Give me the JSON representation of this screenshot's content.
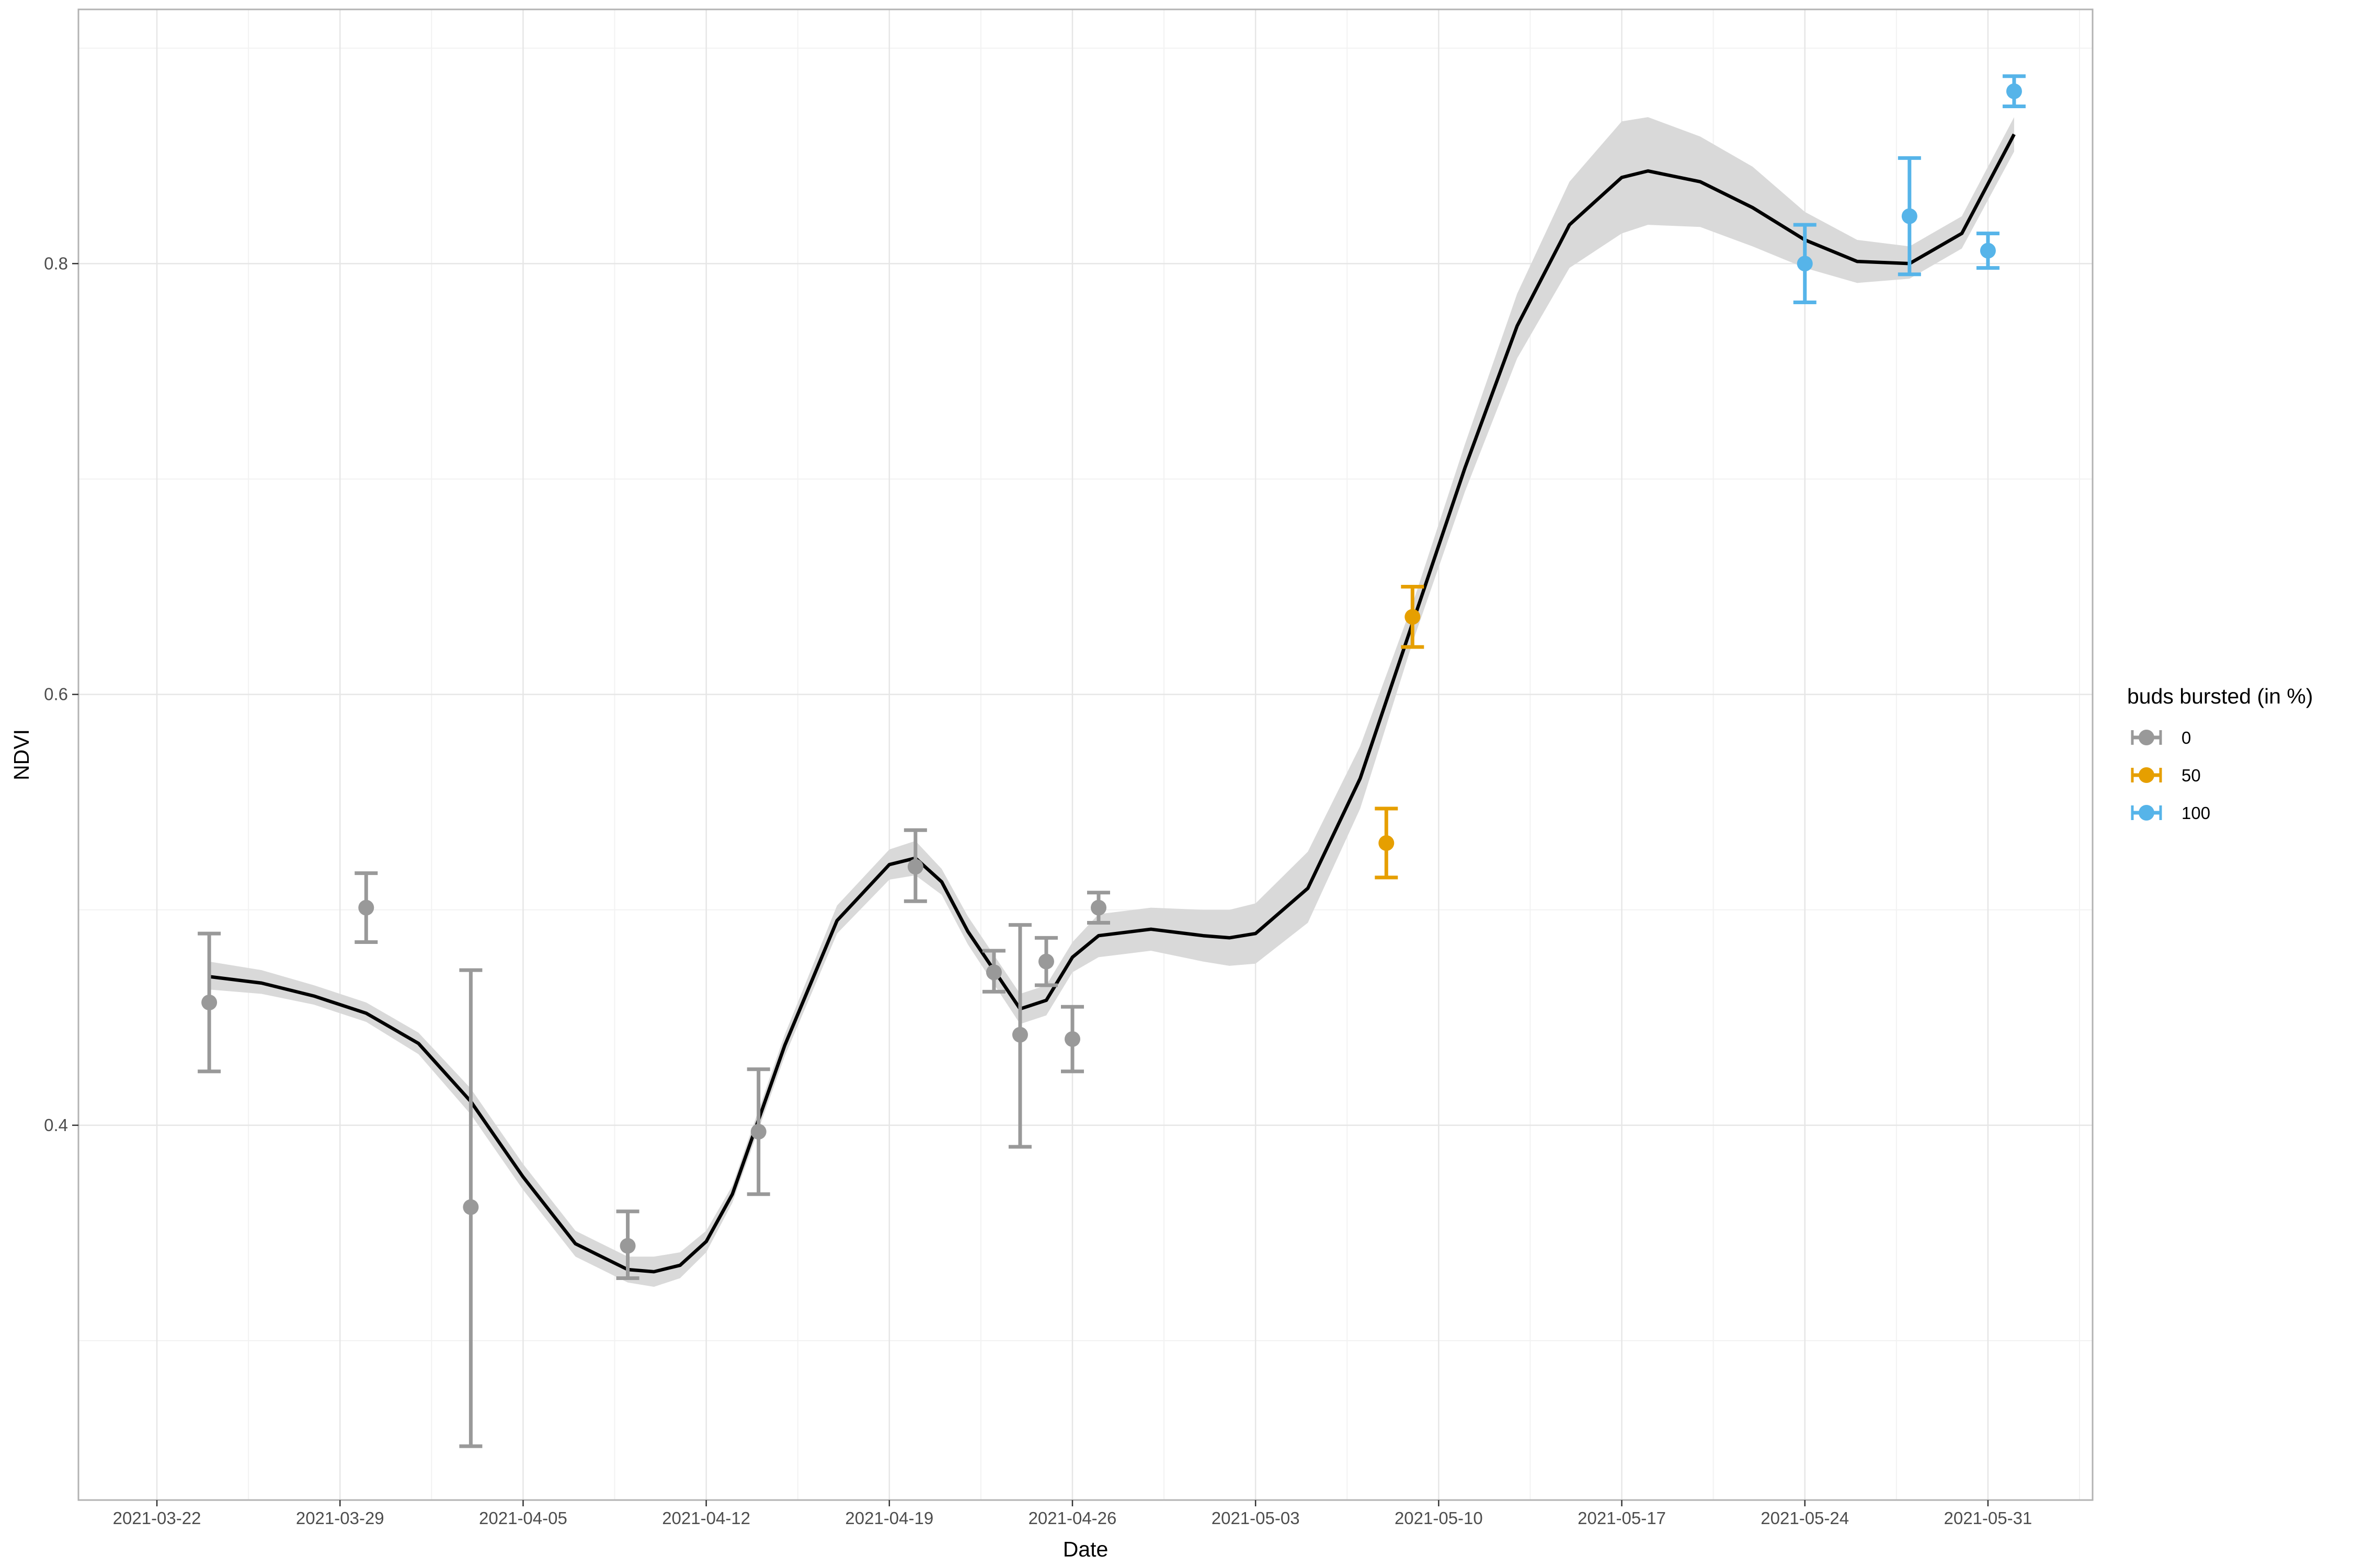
{
  "chart_data": {
    "type": "scatter",
    "xlabel": "Date",
    "ylabel": "NDVI",
    "x_axis_type": "date",
    "xlim": [
      "2021-03-19",
      "2021-06-04"
    ],
    "ylim": [
      0.226,
      0.918
    ],
    "x_ticks": [
      "2021-03-22",
      "2021-03-29",
      "2021-04-05",
      "2021-04-12",
      "2021-04-19",
      "2021-04-26",
      "2021-05-03",
      "2021-05-10",
      "2021-05-17",
      "2021-05-24",
      "2021-05-31"
    ],
    "y_ticks": [
      0.4,
      0.6,
      0.8
    ],
    "grid": true,
    "legend": {
      "title": "buds bursted (in %)",
      "position": "right",
      "entries": [
        {
          "label": "0",
          "color": "#999999"
        },
        {
          "label": "50",
          "color": "#E69F00"
        },
        {
          "label": "100",
          "color": "#56B4E9"
        }
      ]
    },
    "points": [
      {
        "date": "2021-03-24",
        "y": 0.457,
        "ymin": 0.425,
        "ymax": 0.489,
        "group": "0"
      },
      {
        "date": "2021-03-30",
        "y": 0.501,
        "ymin": 0.485,
        "ymax": 0.517,
        "group": "0"
      },
      {
        "date": "2021-04-03",
        "y": 0.362,
        "ymin": 0.251,
        "ymax": 0.472,
        "group": "0"
      },
      {
        "date": "2021-04-09",
        "y": 0.344,
        "ymin": 0.329,
        "ymax": 0.36,
        "group": "0"
      },
      {
        "date": "2021-04-14",
        "y": 0.397,
        "ymin": 0.368,
        "ymax": 0.426,
        "group": "0"
      },
      {
        "date": "2021-04-20",
        "y": 0.52,
        "ymin": 0.504,
        "ymax": 0.537,
        "group": "0"
      },
      {
        "date": "2021-04-23",
        "y": 0.471,
        "ymin": 0.462,
        "ymax": 0.481,
        "group": "0"
      },
      {
        "date": "2021-04-24",
        "y": 0.442,
        "ymin": 0.39,
        "ymax": 0.493,
        "group": "0"
      },
      {
        "date": "2021-04-25",
        "y": 0.476,
        "ymin": 0.465,
        "ymax": 0.487,
        "group": "0"
      },
      {
        "date": "2021-04-26",
        "y": 0.44,
        "ymin": 0.425,
        "ymax": 0.455,
        "group": "0"
      },
      {
        "date": "2021-04-27",
        "y": 0.501,
        "ymin": 0.494,
        "ymax": 0.508,
        "group": "0"
      },
      {
        "date": "2021-05-08",
        "y": 0.531,
        "ymin": 0.515,
        "ymax": 0.547,
        "group": "50"
      },
      {
        "date": "2021-05-09",
        "y": 0.636,
        "ymin": 0.622,
        "ymax": 0.65,
        "group": "50"
      },
      {
        "date": "2021-05-24",
        "y": 0.8,
        "ymin": 0.782,
        "ymax": 0.818,
        "group": "100"
      },
      {
        "date": "2021-05-28",
        "y": 0.822,
        "ymin": 0.795,
        "ymax": 0.849,
        "group": "100"
      },
      {
        "date": "2021-05-31",
        "y": 0.806,
        "ymin": 0.798,
        "ymax": 0.814,
        "group": "100"
      },
      {
        "date": "2021-06-01",
        "y": 0.88,
        "ymin": 0.873,
        "ymax": 0.887,
        "group": "100"
      }
    ],
    "smooth": {
      "color": "#000000",
      "ribbon_color": "#d9d9d9",
      "x": [
        "2021-03-24",
        "2021-03-26",
        "2021-03-28",
        "2021-03-30",
        "2021-04-01",
        "2021-04-03",
        "2021-04-05",
        "2021-04-07",
        "2021-04-09",
        "2021-04-10",
        "2021-04-11",
        "2021-04-12",
        "2021-04-13",
        "2021-04-15",
        "2021-04-17",
        "2021-04-19",
        "2021-04-20",
        "2021-04-21",
        "2021-04-22",
        "2021-04-24",
        "2021-04-25",
        "2021-04-26",
        "2021-04-27",
        "2021-04-29",
        "2021-05-01",
        "2021-05-02",
        "2021-05-03",
        "2021-05-05",
        "2021-05-07",
        "2021-05-09",
        "2021-05-11",
        "2021-05-13",
        "2021-05-15",
        "2021-05-17",
        "2021-05-18",
        "2021-05-20",
        "2021-05-22",
        "2021-05-24",
        "2021-05-26",
        "2021-05-28",
        "2021-05-30",
        "2021-06-01"
      ],
      "y": [
        0.469,
        0.466,
        0.46,
        0.452,
        0.438,
        0.411,
        0.376,
        0.345,
        0.333,
        0.332,
        0.335,
        0.346,
        0.368,
        0.437,
        0.495,
        0.521,
        0.524,
        0.513,
        0.49,
        0.454,
        0.458,
        0.478,
        0.488,
        0.491,
        0.488,
        0.487,
        0.489,
        0.51,
        0.561,
        0.633,
        0.705,
        0.771,
        0.818,
        0.84,
        0.843,
        0.838,
        0.826,
        0.811,
        0.801,
        0.8,
        0.814,
        0.86
      ],
      "ymin": [
        0.463,
        0.461,
        0.456,
        0.448,
        0.433,
        0.405,
        0.37,
        0.339,
        0.327,
        0.325,
        0.329,
        0.341,
        0.364,
        0.432,
        0.489,
        0.514,
        0.516,
        0.507,
        0.484,
        0.447,
        0.451,
        0.471,
        0.478,
        0.481,
        0.476,
        0.474,
        0.475,
        0.494,
        0.547,
        0.624,
        0.694,
        0.756,
        0.798,
        0.814,
        0.818,
        0.817,
        0.808,
        0.798,
        0.791,
        0.793,
        0.807,
        0.852
      ],
      "ymax": [
        0.476,
        0.472,
        0.465,
        0.457,
        0.443,
        0.417,
        0.382,
        0.351,
        0.339,
        0.339,
        0.341,
        0.351,
        0.372,
        0.442,
        0.502,
        0.528,
        0.532,
        0.519,
        0.497,
        0.461,
        0.465,
        0.485,
        0.498,
        0.501,
        0.5,
        0.5,
        0.503,
        0.527,
        0.576,
        0.642,
        0.716,
        0.786,
        0.838,
        0.866,
        0.868,
        0.859,
        0.845,
        0.824,
        0.811,
        0.808,
        0.822,
        0.868
      ]
    }
  }
}
